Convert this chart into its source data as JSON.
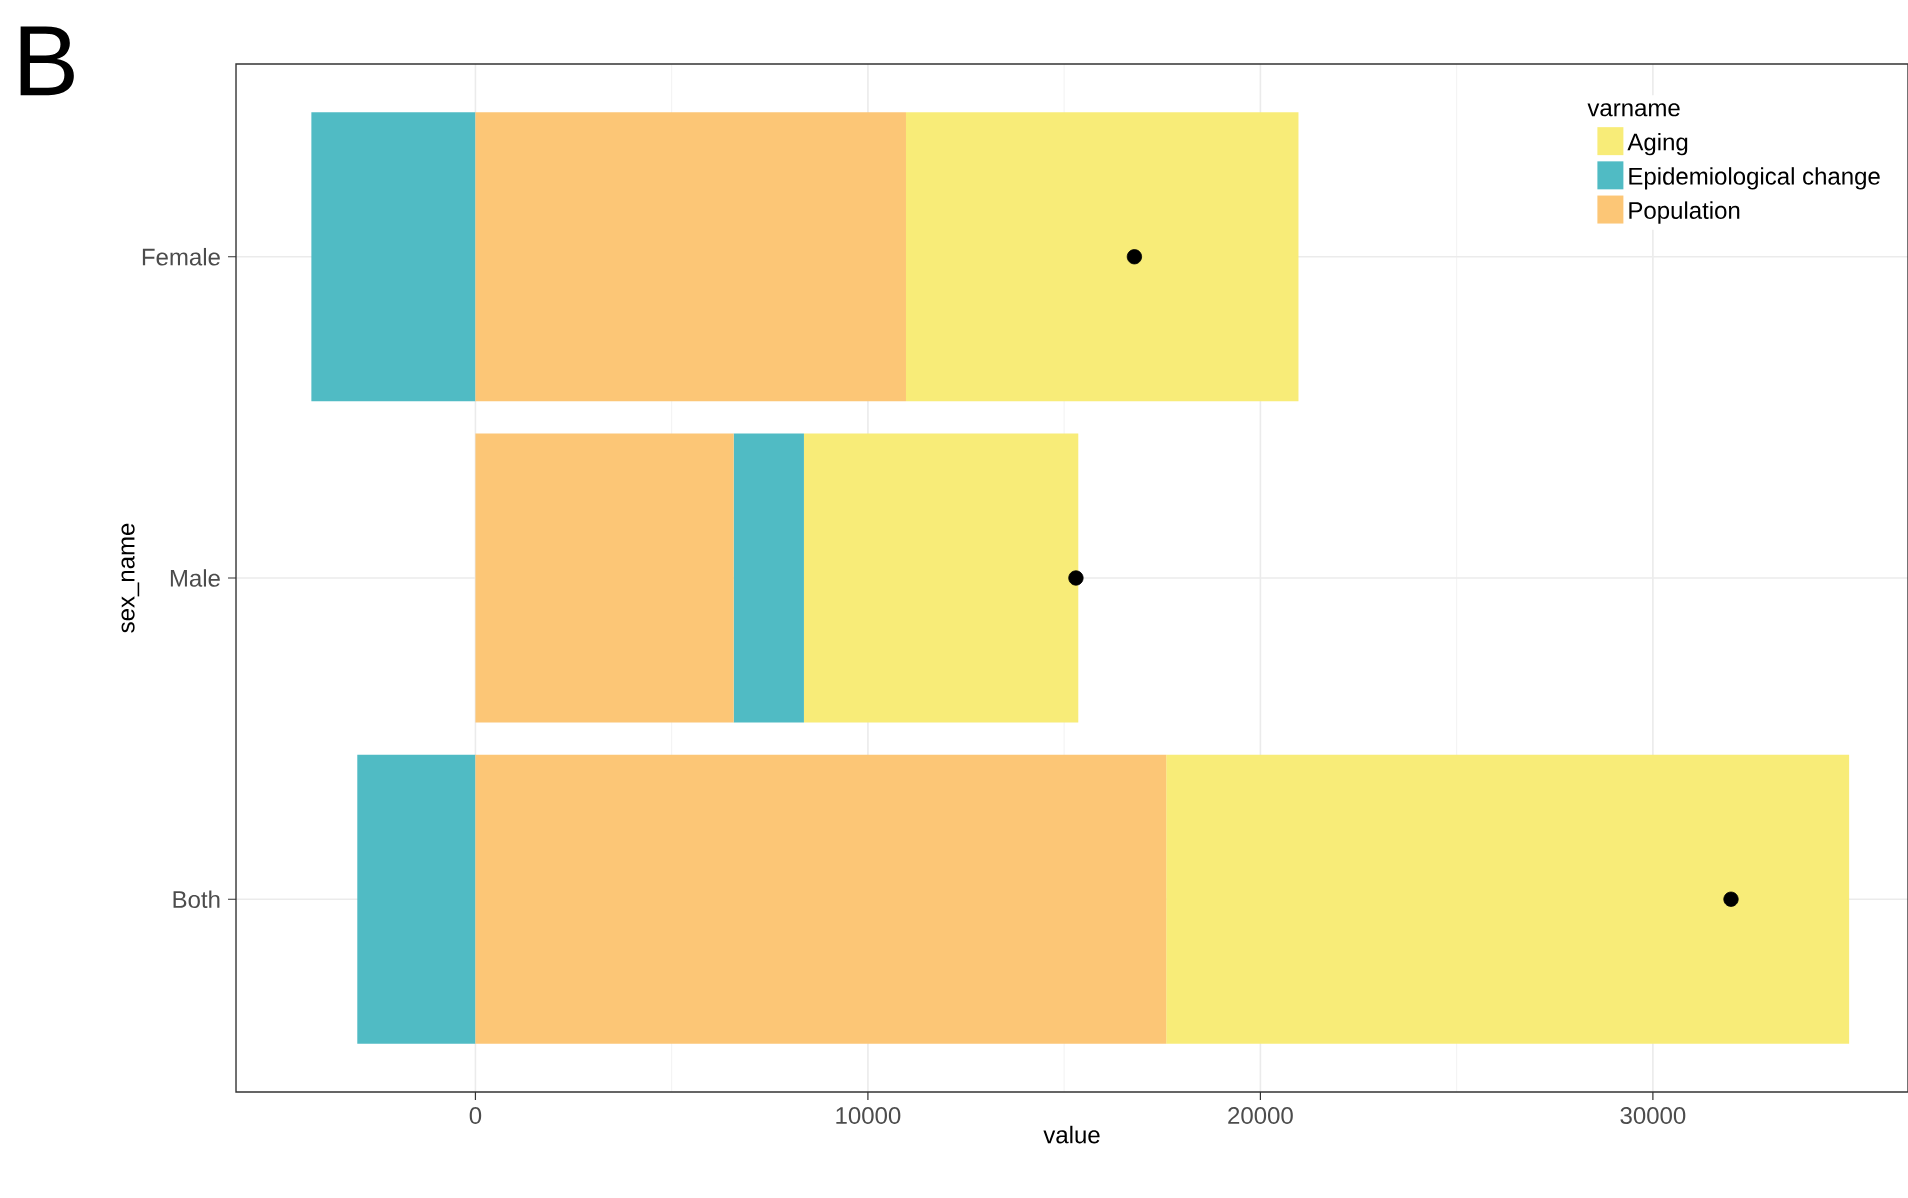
{
  "chart_data": {
    "type": "bar",
    "orientation": "horizontal",
    "annotations": [
      "B"
    ],
    "xlabel": "value",
    "ylabel": "sex_name",
    "legend_title": "varname",
    "legend": "top right",
    "grid": true,
    "categories": [
      "Female",
      "Male",
      "Both"
    ],
    "xlim": [
      -6100,
      36500
    ],
    "xticks": [
      0,
      10000,
      20000,
      30000
    ],
    "series": [
      {
        "name": "Aging",
        "color": "#f8ec78",
        "values": [
          10000,
          6990,
          17400
        ],
        "base": [
          10970,
          8370,
          17600
        ]
      },
      {
        "name": "Epidemiological change",
        "color": "#50bbc4",
        "values": [
          -4180,
          1790,
          -3010
        ],
        "base": [
          0,
          6580,
          0
        ]
      },
      {
        "name": "Population",
        "color": "#fcc676",
        "values": [
          10970,
          6580,
          17600
        ],
        "base": [
          0,
          0,
          0
        ]
      },
      {
        "type": "scatter",
        "color": "#000000",
        "marker": "circle",
        "values": [
          16790,
          15300,
          31990
        ]
      }
    ]
  }
}
